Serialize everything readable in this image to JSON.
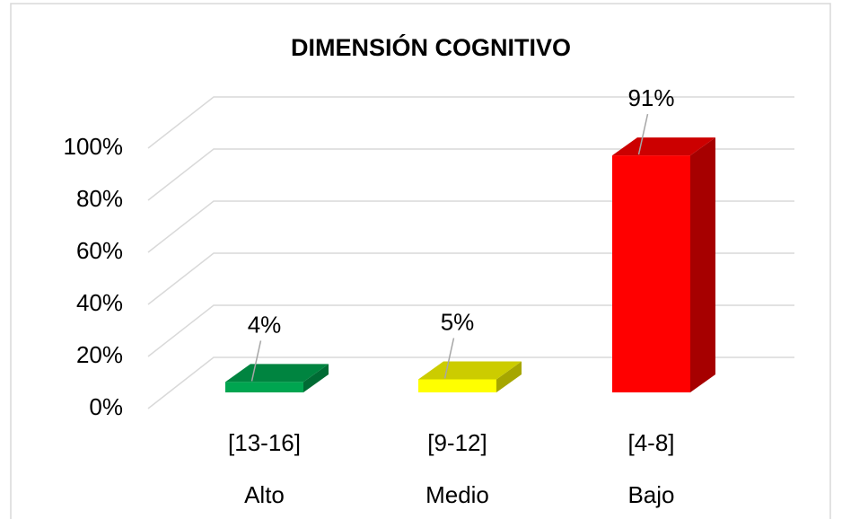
{
  "chart_data": {
    "type": "bar3d",
    "title": "DIMENSIÓN COGNITIVO",
    "categories": [
      [
        "[13-16]",
        "Alto"
      ],
      [
        "[9-12]",
        "Medio"
      ],
      [
        "[4-8]",
        "Bajo"
      ]
    ],
    "values": [
      4,
      5,
      91
    ],
    "value_labels": [
      "4%",
      "5%",
      "91%"
    ],
    "colors": [
      "#00a550",
      "#ffff00",
      "#ff0000"
    ],
    "ylim": [
      0,
      100
    ],
    "yticks": [
      {
        "value": 0,
        "label": "0%"
      },
      {
        "value": 20,
        "label": "20%"
      },
      {
        "value": 40,
        "label": "40%"
      },
      {
        "value": 60,
        "label": "60%"
      },
      {
        "value": 80,
        "label": "80%"
      },
      {
        "value": 100,
        "label": "100%"
      }
    ],
    "grid": true
  }
}
